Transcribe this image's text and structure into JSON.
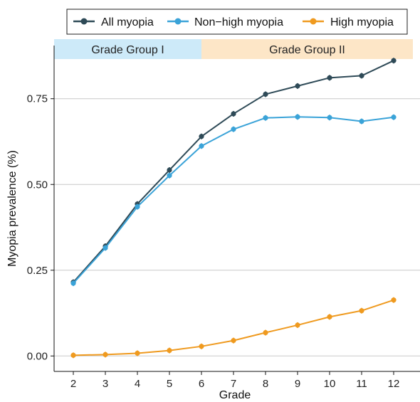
{
  "chart_data": {
    "type": "line",
    "xlabel": "Grade",
    "ylabel": "Myopia prevalence (%)",
    "x": [
      2,
      3,
      4,
      5,
      6,
      7,
      8,
      9,
      10,
      11,
      12
    ],
    "xlim": [
      1.4,
      12.6
    ],
    "ylim": [
      -0.045,
      0.905
    ],
    "yticks": [
      0.0,
      0.25,
      0.5,
      0.75
    ],
    "ytick_labels": [
      "0.00",
      "0.25",
      "0.50",
      "0.75"
    ],
    "xtick_labels": [
      "2",
      "3",
      "4",
      "5",
      "6",
      "7",
      "8",
      "9",
      "10",
      "11",
      "12"
    ],
    "grid": "horizontal major",
    "legend_position": "top",
    "series": [
      {
        "name": "All myopia",
        "color": "#2e4a57",
        "values": [
          0.215,
          0.32,
          0.443,
          0.542,
          0.64,
          0.706,
          0.763,
          0.787,
          0.811,
          0.817,
          0.861
        ]
      },
      {
        "name": "Non−high myopia",
        "color": "#3aa3d8",
        "values": [
          0.212,
          0.315,
          0.435,
          0.526,
          0.612,
          0.661,
          0.694,
          0.697,
          0.695,
          0.684,
          0.696
        ]
      },
      {
        "name": "High myopia",
        "color": "#ef9a1f",
        "values": [
          0.002,
          0.004,
          0.008,
          0.016,
          0.028,
          0.045,
          0.068,
          0.09,
          0.114,
          0.132,
          0.163
        ]
      }
    ],
    "bands": [
      {
        "label": "Grade Group I",
        "x_range": [
          1.4,
          6.0
        ],
        "color": "#cdeaf9"
      },
      {
        "label": "Grade Group II",
        "x_range": [
          6.0,
          12.6
        ],
        "color": "#fde6c7"
      }
    ]
  }
}
